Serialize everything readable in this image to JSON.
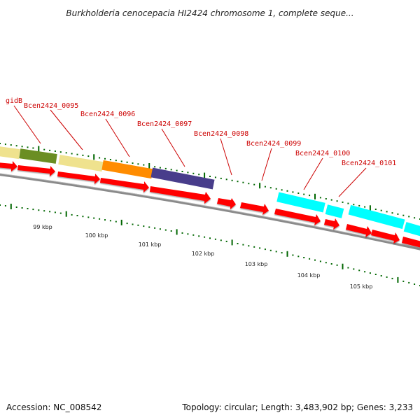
{
  "title": "Burkholderia cenocepacia HI2424 chromosome 1, complete seque...",
  "footer": {
    "accession": "Accession: NC_008542",
    "topology": "Topology: circular; Length: 3,483,902 bp; Genes: 3,233"
  },
  "colors": {
    "cds_feature": "#ff0000",
    "gene_label": "#cc0000",
    "tick": "#006600",
    "backbone": "#8a8a8a"
  },
  "gene_labels": [
    "gidB",
    "Bcen2424_0095",
    "Bcen2424_0096",
    "Bcen2424_0097",
    "Bcen2424_0098",
    "Bcen2424_0099",
    "Bcen2424_0100",
    "Bcen2424_0101"
  ],
  "kbp_labels": [
    "99 kbp",
    "100 kbp",
    "101 kbp",
    "102 kbp",
    "103 kbp",
    "104 kbp",
    "105 kbp"
  ],
  "feature_colors": {
    "light_khaki": "#efe28e",
    "olive_green": "#6b8e23",
    "dark_orange": "#ff8c00",
    "dark_slate_blue": "#483d8b",
    "cyan": "#00ffff",
    "red": "#ff0000"
  }
}
